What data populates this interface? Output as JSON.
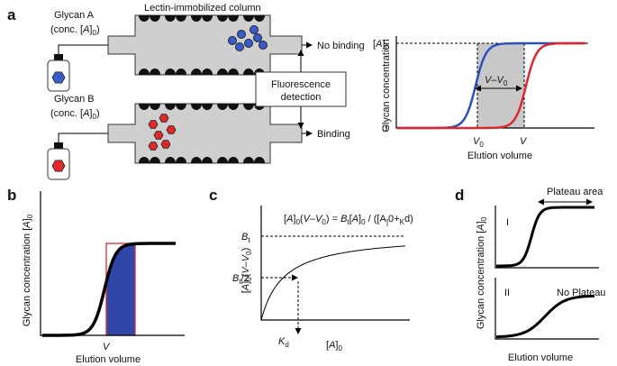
{
  "panel_a": {
    "label": "a",
    "glycan_a": "Glycan A",
    "conc_a": [
      "(conc. [",
      "A",
      "]",
      "0",
      ")"
    ],
    "column_label": "Lectin-immobilized column",
    "no_binding": "No binding",
    "detection": [
      "Fluorescence",
      "detection"
    ],
    "glycan_b": "Glycan B",
    "conc_b": [
      "(conc. [",
      "A",
      "]",
      "0",
      ")"
    ],
    "binding": "Binding",
    "chart": {
      "y_label": "Glycan concentration",
      "y_top": [
        "[",
        "A",
        "]",
        "0"
      ],
      "y_zero": "0",
      "v0": [
        "V",
        "0"
      ],
      "v": "V",
      "diff": [
        "V",
        "–",
        "V",
        "0"
      ],
      "x_label": "Elution volume"
    }
  },
  "panel_b": {
    "label": "b",
    "y_label": [
      "Glycan concentration [",
      "A",
      "]",
      "0"
    ],
    "v": "V",
    "x_label": "Elution volume"
  },
  "panel_c": {
    "label": "c",
    "equation": [
      "[",
      "A",
      "]",
      "0",
      "(",
      "V",
      "–",
      "V",
      "0",
      ") = ",
      "B",
      "t",
      "[",
      "A",
      "]",
      "0",
      " / ([",
      "A",
      "]",
      "0",
      "+",
      "K",
      "d",
      ")"
    ],
    "y_label": [
      "[",
      "A",
      "]",
      "0",
      "(",
      "V",
      "–",
      "V",
      "0",
      ")"
    ],
    "bt": [
      "B",
      "t"
    ],
    "bt_half": [
      "B",
      "t",
      "/2"
    ],
    "kd": [
      "K",
      "d"
    ],
    "x_label": [
      "[",
      "A",
      "]",
      "0"
    ]
  },
  "panel_d": {
    "label": "d",
    "plateau": "Plateau area",
    "i": "I",
    "ii": "II",
    "no_plateau": "No Plateau",
    "y_label": [
      "Glycan concentration [",
      "A",
      "]",
      "0"
    ],
    "x_label": "Elution volume"
  }
}
